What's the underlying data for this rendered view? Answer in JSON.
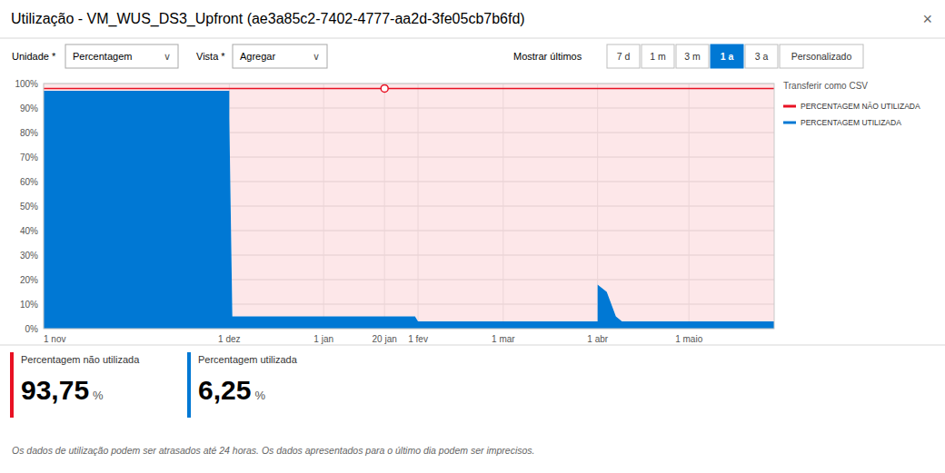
{
  "controls": {
    "close_symbol": "×",
    "unit_label": "Unidade *",
    "unit_value": "Percentagem",
    "vista_label": "Vista *",
    "vista_value": "Agregar",
    "dropdown_symbol": "∨",
    "mostrar_label": "Mostrar últimos",
    "time_buttons": [
      "7 d",
      "1 m",
      "3 m",
      "1 a",
      "3 a",
      "Personalizado"
    ],
    "active_button": "1 a",
    "active_button_color": "#0078d4",
    "csv_label": "Transferir como CSV",
    "footer_text": "Os dados de utilização podem ser atrasados até 24 horas. Os dados apresentados para o último dia podem ser imprecisos."
  },
  "chart_data": {
    "type": "area",
    "title": "Utilização - VM_WUS_DS3_Upfront (ae3a85c2-7402-4777-aa2d-3fe05cb7b6fd)",
    "x": [
      0,
      61,
      61,
      62,
      65,
      112,
      112,
      113,
      115,
      120,
      122,
      123,
      182,
      182,
      185,
      188,
      190,
      212,
      240
    ],
    "series": [
      {
        "name": "PERCENTAGEM UTILIZADA",
        "color": "#0078d4",
        "values": [
          97,
          97,
          86,
          5,
          5,
          5,
          5,
          5,
          5,
          5,
          5,
          3,
          3,
          18,
          15,
          5,
          3,
          3,
          3
        ]
      }
    ],
    "reference_lines": [
      {
        "name": "PERCENTAGEM NÃO UTILIZADA",
        "value": 98,
        "color": "#e81123"
      }
    ],
    "highlight_point": {
      "x": 112,
      "y": 98
    },
    "xlim": [
      0,
      240
    ],
    "ylim": [
      0,
      100
    ],
    "xticks": [
      {
        "value": 0,
        "label": "1 nov"
      },
      {
        "value": 61,
        "label": "1 dez"
      },
      {
        "value": 92,
        "label": "1 jan"
      },
      {
        "value": 112,
        "label": "20 jan"
      },
      {
        "value": 123,
        "label": "1 fev"
      },
      {
        "value": 151,
        "label": "1 mar"
      },
      {
        "value": 182,
        "label": "1 abr"
      },
      {
        "value": 212,
        "label": "1 maio"
      }
    ],
    "yticks": [
      {
        "value": 0,
        "label": "0%"
      },
      {
        "value": 10,
        "label": "10%"
      },
      {
        "value": 20,
        "label": "20%"
      },
      {
        "value": 30,
        "label": "30%"
      },
      {
        "value": 40,
        "label": "40%"
      },
      {
        "value": 50,
        "label": "50%"
      },
      {
        "value": 60,
        "label": "60%"
      },
      {
        "value": 70,
        "label": "70%"
      },
      {
        "value": 80,
        "label": "80%"
      },
      {
        "value": 90,
        "label": "90%"
      },
      {
        "value": 100,
        "label": "100%"
      }
    ],
    "grid": true,
    "legend": "right"
  },
  "stats": [
    {
      "label": "Percentagem não utilizada",
      "value": 93.75,
      "value_label": "93,75",
      "unit": "%",
      "color": "#e81123"
    },
    {
      "label": "Percentagem utilizada",
      "value": 6.25,
      "value_label": "6,25",
      "unit": "%",
      "color": "#0078d4"
    }
  ]
}
